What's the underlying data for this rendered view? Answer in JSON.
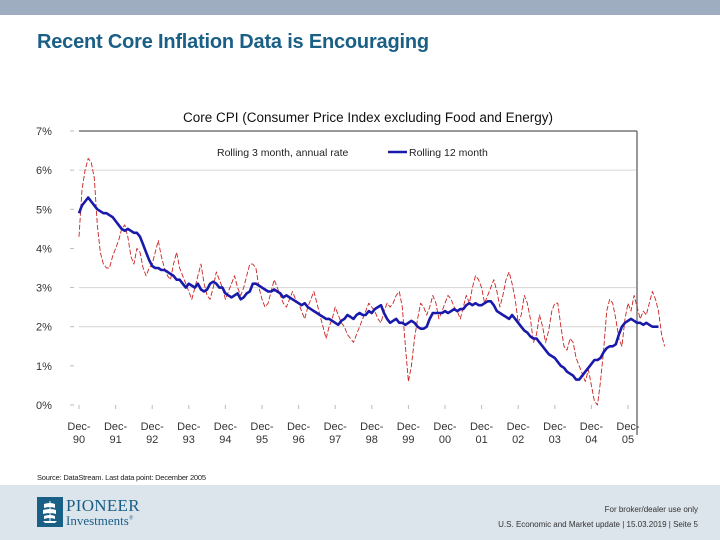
{
  "slide": {
    "title": "Recent Core Inflation Data is Encouraging",
    "source": "Source: DataStream. Last data point: December 2005",
    "footer_note": "For broker/dealer use only",
    "footer_meta": "U.S. Economic and Market update  | 15.03.2019 | Seite 5",
    "logo": {
      "line1": "PIONEER",
      "line2": "Investments",
      "mark": "®",
      "icon": "ship-icon"
    },
    "colors": {
      "title": "#1a5f86",
      "band": "#9eadc0",
      "footer_bg": "#dce4ec"
    }
  },
  "chart_data": {
    "type": "line",
    "title": "Core CPI (Consumer Price Index excluding Food and Energy)",
    "xlabel": "",
    "ylabel": "",
    "ylim": [
      0,
      7
    ],
    "yticks": [
      "0%",
      "1%",
      "2%",
      "3%",
      "4%",
      "5%",
      "6%",
      "7%"
    ],
    "grid": "horizontal",
    "gridlines_at": [
      2,
      3,
      6,
      7
    ],
    "legend_position": "top-center",
    "x_categories": [
      "Dec-\n90",
      "Dec-\n91",
      "Dec-\n92",
      "Dec-\n93",
      "Dec-\n94",
      "Dec-\n95",
      "Dec-\n96",
      "Dec-\n97",
      "Dec-\n98",
      "Dec-\n99",
      "Dec-\n00",
      "Dec-\n01",
      "Dec-\n02",
      "Dec-\n03",
      "Dec-\n04",
      "Dec-\n05"
    ],
    "x_range_years": [
      1990.92,
      2005.92
    ],
    "series": [
      {
        "name": "Rolling 3 month, annual rate",
        "color": "#cc2222",
        "style": "dashed-thin",
        "start": 1990.92,
        "step_months": 1,
        "values": [
          4.3,
          5.5,
          6.0,
          6.3,
          6.2,
          5.8,
          4.6,
          3.9,
          3.6,
          3.5,
          3.5,
          3.8,
          4.0,
          4.2,
          4.5,
          4.6,
          4.3,
          3.8,
          3.6,
          4.0,
          3.9,
          3.5,
          3.3,
          3.5,
          3.6,
          3.9,
          4.2,
          3.8,
          3.5,
          3.3,
          3.2,
          3.6,
          3.9,
          3.5,
          3.3,
          3.1,
          2.9,
          2.7,
          3.0,
          3.3,
          3.6,
          3.1,
          2.8,
          2.7,
          3.0,
          3.4,
          3.2,
          3.0,
          2.7,
          2.9,
          3.1,
          3.3,
          3.0,
          2.8,
          3.0,
          3.3,
          3.6,
          3.6,
          3.5,
          3.0,
          2.7,
          2.5,
          2.6,
          2.9,
          3.2,
          3.0,
          2.8,
          2.6,
          2.5,
          2.7,
          2.9,
          2.7,
          2.6,
          2.4,
          2.2,
          2.5,
          2.7,
          2.9,
          2.6,
          2.3,
          2.0,
          1.7,
          2.0,
          2.2,
          2.5,
          2.3,
          2.1,
          2.0,
          1.8,
          1.7,
          1.6,
          1.8,
          2.0,
          2.2,
          2.4,
          2.6,
          2.5,
          2.4,
          2.2,
          2.1,
          2.4,
          2.6,
          2.5,
          2.6,
          2.8,
          2.9,
          2.5,
          1.5,
          0.6,
          1.0,
          1.7,
          2.2,
          2.6,
          2.5,
          2.3,
          2.5,
          2.8,
          2.6,
          2.2,
          2.4,
          2.6,
          2.8,
          2.7,
          2.5,
          2.4,
          2.2,
          2.5,
          2.8,
          2.6,
          3.0,
          3.3,
          3.2,
          3.0,
          2.6,
          2.8,
          3.0,
          3.2,
          2.9,
          2.5,
          2.8,
          3.2,
          3.4,
          3.1,
          2.7,
          2.1,
          2.3,
          2.8,
          2.6,
          2.2,
          1.6,
          1.8,
          2.3,
          2.0,
          1.6,
          1.9,
          2.4,
          2.6,
          2.6,
          2.0,
          1.5,
          1.4,
          1.7,
          1.6,
          1.2,
          1.0,
          0.8,
          0.6,
          0.9,
          0.5,
          0.1,
          0.0,
          0.6,
          1.4,
          2.4,
          2.7,
          2.6,
          2.2,
          1.7,
          1.5,
          2.2,
          2.6,
          2.4,
          2.8,
          2.5,
          2.2,
          2.4,
          2.3,
          2.6,
          2.9,
          2.7,
          2.4,
          1.8,
          1.5
        ]
      },
      {
        "name": "Rolling 12 month",
        "color": "#1a1aaa",
        "style": "solid-thick",
        "start": 1990.92,
        "step_months": 1,
        "values": [
          4.9,
          5.1,
          5.2,
          5.3,
          5.2,
          5.1,
          5.0,
          4.95,
          4.9,
          4.9,
          4.85,
          4.8,
          4.7,
          4.6,
          4.5,
          4.45,
          4.5,
          4.45,
          4.4,
          4.4,
          4.3,
          4.1,
          3.9,
          3.7,
          3.55,
          3.5,
          3.5,
          3.45,
          3.45,
          3.4,
          3.35,
          3.3,
          3.2,
          3.2,
          3.1,
          3.0,
          3.1,
          3.05,
          3.0,
          3.1,
          2.95,
          2.9,
          2.95,
          3.1,
          3.15,
          3.1,
          3.0,
          3.0,
          2.85,
          2.8,
          2.75,
          2.8,
          2.85,
          2.7,
          2.75,
          2.85,
          2.9,
          3.1,
          3.1,
          3.05,
          3.0,
          2.95,
          2.9,
          2.9,
          2.95,
          2.9,
          2.85,
          2.75,
          2.8,
          2.75,
          2.7,
          2.65,
          2.6,
          2.55,
          2.6,
          2.5,
          2.45,
          2.4,
          2.35,
          2.3,
          2.25,
          2.2,
          2.2,
          2.15,
          2.1,
          2.05,
          2.15,
          2.2,
          2.3,
          2.25,
          2.2,
          2.3,
          2.35,
          2.3,
          2.3,
          2.4,
          2.35,
          2.45,
          2.5,
          2.55,
          2.35,
          2.2,
          2.1,
          2.15,
          2.2,
          2.1,
          2.1,
          2.05,
          2.1,
          2.15,
          2.1,
          2.0,
          1.95,
          1.95,
          2.0,
          2.2,
          2.35,
          2.35,
          2.35,
          2.35,
          2.4,
          2.35,
          2.4,
          2.45,
          2.4,
          2.45,
          2.45,
          2.55,
          2.6,
          2.55,
          2.6,
          2.55,
          2.55,
          2.6,
          2.65,
          2.65,
          2.55,
          2.4,
          2.35,
          2.3,
          2.25,
          2.2,
          2.3,
          2.2,
          2.1,
          2.0,
          1.9,
          1.85,
          1.75,
          1.7,
          1.7,
          1.6,
          1.5,
          1.4,
          1.3,
          1.25,
          1.2,
          1.1,
          1.0,
          0.95,
          0.85,
          0.8,
          0.75,
          0.65,
          0.65,
          0.75,
          0.85,
          0.95,
          1.05,
          1.15,
          1.15,
          1.2,
          1.35,
          1.45,
          1.5,
          1.5,
          1.55,
          1.8,
          2.0,
          2.1,
          2.15,
          2.2,
          2.15,
          2.1,
          2.1,
          2.05,
          2.1,
          2.05,
          2.0,
          2.0,
          2.0
        ]
      }
    ]
  }
}
